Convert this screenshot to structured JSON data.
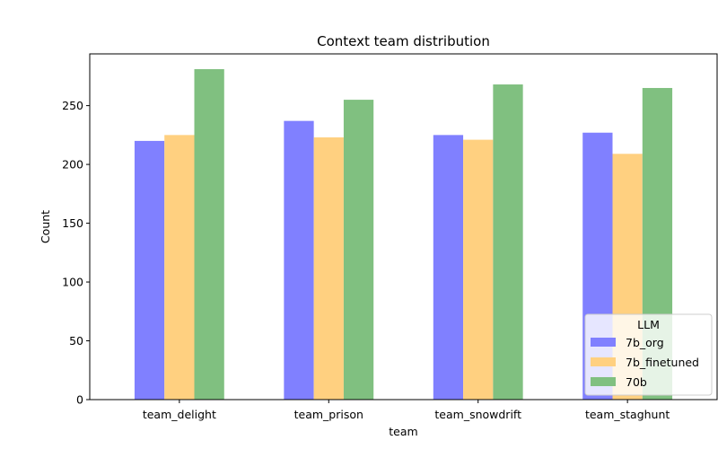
{
  "chart_data": {
    "type": "bar",
    "title": "Context team distribution",
    "xlabel": "team",
    "ylabel": "Count",
    "categories": [
      "team_delight",
      "team_prison",
      "team_snowdrift",
      "team_staghunt"
    ],
    "series": [
      {
        "name": "7b_org",
        "color": "#8080ff",
        "values": [
          220,
          237,
          225,
          227
        ]
      },
      {
        "name": "7b_finetuned",
        "color": "#ffd080",
        "values": [
          225,
          223,
          221,
          209
        ]
      },
      {
        "name": "70b",
        "color": "#80c080",
        "values": [
          281,
          255,
          268,
          265
        ]
      }
    ],
    "ylim": [
      0,
      294
    ],
    "yticks": [
      0,
      50,
      100,
      150,
      200,
      250
    ],
    "grid": false,
    "legend": {
      "title": "LLM",
      "placement": "lower-right"
    }
  }
}
